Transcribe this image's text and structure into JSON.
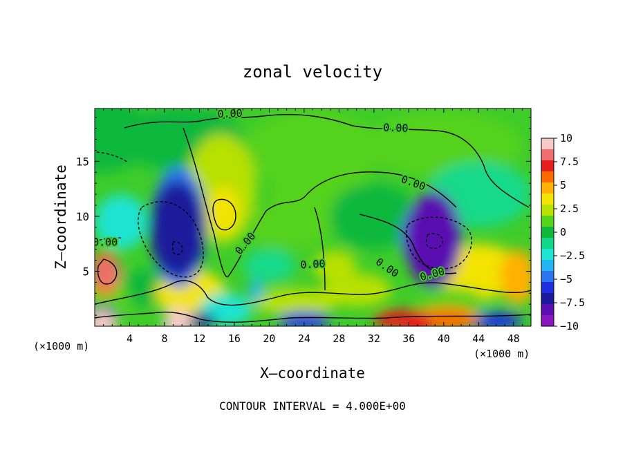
{
  "chart_data": {
    "type": "heatmap",
    "title": "zonal velocity",
    "xlabel": "X–coordinate",
    "ylabel": "Z–coordinate",
    "x_unit_label": "(×1000 m)",
    "z_unit_label": "(×1000 m)",
    "footer": "CONTOUR INTERVAL = 4.000E+00",
    "xlim": [
      0,
      50
    ],
    "ylim": [
      0,
      19.8
    ],
    "x_ticks": [
      4,
      8,
      12,
      16,
      20,
      24,
      28,
      32,
      36,
      40,
      44,
      48
    ],
    "y_ticks": [
      5,
      10,
      15
    ],
    "colorbar": {
      "range": [
        -10,
        10
      ],
      "ticks": [
        "10",
        "7.5",
        "5",
        "2.5",
        "0",
        "−2.5",
        "−5",
        "−7.5",
        "−10"
      ],
      "colors": [
        "#f7c8c8",
        "#ef6e6e",
        "#e61e1e",
        "#ff6a00",
        "#ffb000",
        "#f3e300",
        "#b8e000",
        "#55d21a",
        "#10b83c",
        "#12d98a",
        "#1ee3d2",
        "#22b4f0",
        "#2a74f0",
        "#1e2ee0",
        "#1c1a9c",
        "#5a10b0",
        "#8a16c0"
      ]
    },
    "contour_labels": [
      {
        "text": "0.00",
        "x": 15.5,
        "z": 19.3,
        "angle": -2
      },
      {
        "text": "0.00",
        "x": 34.5,
        "z": 18.0,
        "angle": 2
      },
      {
        "text": "0.00",
        "x": 36.5,
        "z": 13.0,
        "angle": 20
      },
      {
        "text": "0.00",
        "x": 17.3,
        "z": 7.5,
        "angle": -50
      },
      {
        "text": "0.00",
        "x": 25.0,
        "z": 5.6,
        "angle": -3
      },
      {
        "text": "0.00",
        "x": 33.5,
        "z": 5.3,
        "angle": 35
      },
      {
        "text": "0.00",
        "x": 38.7,
        "z": 4.7,
        "angle": -15
      },
      {
        "text": "0.00",
        "x": 1.2,
        "z": 7.6,
        "angle": 0
      }
    ],
    "features": [
      {
        "kind": "max",
        "x": 1.4,
        "z": 4.8,
        "value": 8.5
      },
      {
        "kind": "min",
        "x": 9.5,
        "z": 8.8,
        "value": -7.5
      },
      {
        "kind": "max",
        "x": 14.8,
        "z": 10.5,
        "value": 3.8
      },
      {
        "kind": "min",
        "x": 38.8,
        "z": 7.9,
        "value": -8.5
      },
      {
        "kind": "max",
        "x": 37.0,
        "z": 0.2,
        "value": 7.5
      },
      {
        "kind": "max",
        "x": 9.5,
        "z": 0.3,
        "value": 9.5
      },
      {
        "kind": "max",
        "x": 0.8,
        "z": 0.1,
        "value": 10
      }
    ]
  }
}
